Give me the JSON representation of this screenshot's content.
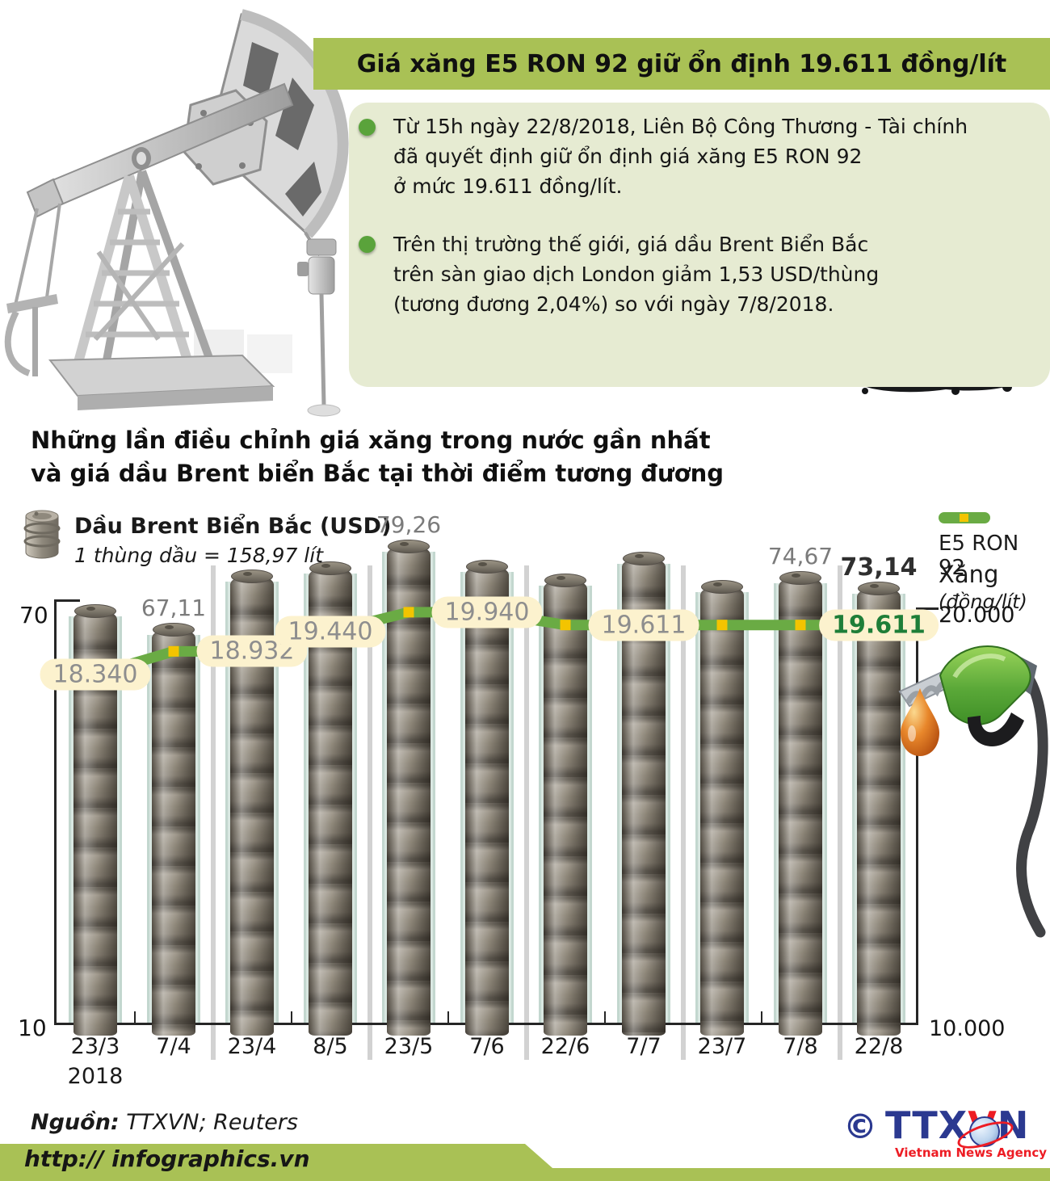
{
  "header": {
    "title": "Giá xăng E5 RON 92 giữ ổn định 19.611 đồng/lít",
    "bullets": [
      "Từ 15h ngày 22/8/2018, Liên Bộ Công Thương - Tài chính\nđã quyết định giữ ổn định giá xăng E5 RON 92\nở mức 19.611 đồng/lít.",
      "Trên thị trường thế giới, giá dầu Brent Biển Bắc\ntrên sàn giao dịch London giảm 1,53 USD/thùng\n(tương đương 2,04%) so với ngày 7/8/2018."
    ]
  },
  "section": {
    "heading": "Những lần điều chỉnh giá xăng trong nước gần nhất\nvà giá dầu Brent biển Bắc tại thời điểm tương đương"
  },
  "legend": {
    "brent_title": "Dầu Brent Biển Bắc (USD)",
    "brent_subtitle": "1 thùng dầu = 158,97 lít",
    "e5_label": "E5 RON 92",
    "e5_line1": "Xăng",
    "e5_line2": "(đồng/lít)"
  },
  "axes": {
    "left_top": "70",
    "left_bottom": "10",
    "right_top": "20.000",
    "right_bottom": "10.000",
    "year": "2018"
  },
  "chart_data": {
    "type": "bar+line",
    "title": "Những lần điều chỉnh giá xăng trong nước gần nhất và giá dầu Brent biển Bắc tại thời điểm tương đương",
    "categories": [
      "23/3",
      "7/4",
      "23/4",
      "8/5",
      "23/5",
      "7/6",
      "22/6",
      "7/7",
      "23/7",
      "7/8",
      "22/8"
    ],
    "year_label": "2018",
    "bar_series": {
      "name": "Dầu Brent Biển Bắc (USD)",
      "note": "1 thùng dầu = 158,97 lít",
      "unit": "USD/thùng",
      "values": [
        69.8,
        67.11,
        74.9,
        76.1,
        79.26,
        76.3,
        74.3,
        77.5,
        73.4,
        74.67,
        73.14
      ],
      "labels": [
        null,
        "67,11",
        null,
        null,
        "79,26",
        null,
        null,
        null,
        null,
        "74,67",
        "73,14"
      ],
      "ylim": [
        10,
        70
      ],
      "axis_labels": {
        "top": "70",
        "bottom": "10"
      }
    },
    "line_series": {
      "name": "E5 RON 92",
      "unit": "đồng/lít",
      "values": [
        18340,
        18932,
        18932,
        19440,
        19940,
        19940,
        19611,
        19611,
        19611,
        19611,
        19611
      ],
      "point_labels": [
        {
          "index": 0,
          "text": "18.340"
        },
        {
          "index": 2,
          "text": "18.932"
        },
        {
          "index": 3,
          "text": "19.440"
        },
        {
          "index": 5,
          "text": "19.940"
        },
        {
          "index": 7,
          "text": "19.611"
        },
        {
          "index": 10,
          "text": "19.611",
          "final": true
        }
      ],
      "marker_indices": [
        1,
        4,
        6,
        8,
        9
      ],
      "axis_labels": {
        "top": "20.000",
        "bottom": "10.000"
      }
    },
    "legend_position": "top"
  },
  "footer": {
    "source_label": "Nguồn:",
    "source_value": " TTXVN; Reuters",
    "url": "http:// infographics.vn",
    "logo": {
      "copyright": "©",
      "ttx": "TTX",
      "v": "V",
      "n": "N",
      "tagline": "Vietnam News Agency"
    }
  },
  "colors": {
    "title_bar_green": "#a9c155",
    "panel_green": "#e6ebd2",
    "bullet_green": "#5aa33b",
    "line_green": "#6aab44",
    "marker_yellow": "#f3c400",
    "pill_bg": "#fcf2ce",
    "pill_text": "#8e8e8e",
    "pill_final_text": "#1e7e38",
    "bar_strip_teal": "#d9e7e1",
    "footer_green": "#a9c155",
    "logo_blue": "#2b3990",
    "logo_red": "#ed1c24"
  }
}
